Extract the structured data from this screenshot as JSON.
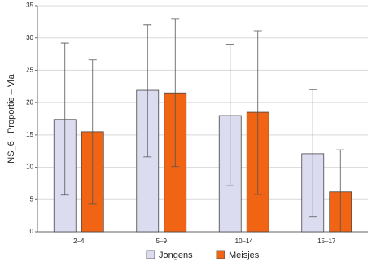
{
  "chart_data": {
    "type": "bar",
    "y_label": "NS_6 : Proportie  –  Vla",
    "categories": [
      "2–4",
      "5–9",
      "10–14",
      "15–17"
    ],
    "series": [
      {
        "name": "Jongens",
        "color": "#dcdcf0",
        "values": [
          17.4,
          21.9,
          18.0,
          12.1
        ],
        "lower": [
          5.7,
          11.6,
          7.2,
          2.3
        ],
        "upper": [
          29.2,
          32.0,
          29.0,
          22.0
        ]
      },
      {
        "name": "Meisjes",
        "color": "#f06414",
        "values": [
          15.5,
          21.5,
          18.5,
          6.2
        ],
        "lower": [
          4.3,
          10.1,
          5.8,
          0.0
        ],
        "upper": [
          26.6,
          33.0,
          31.1,
          12.7
        ]
      }
    ],
    "ylim": [
      0,
      35
    ],
    "yticks": [
      0,
      5,
      10,
      15,
      20,
      25,
      30,
      35
    ],
    "grid": true
  }
}
